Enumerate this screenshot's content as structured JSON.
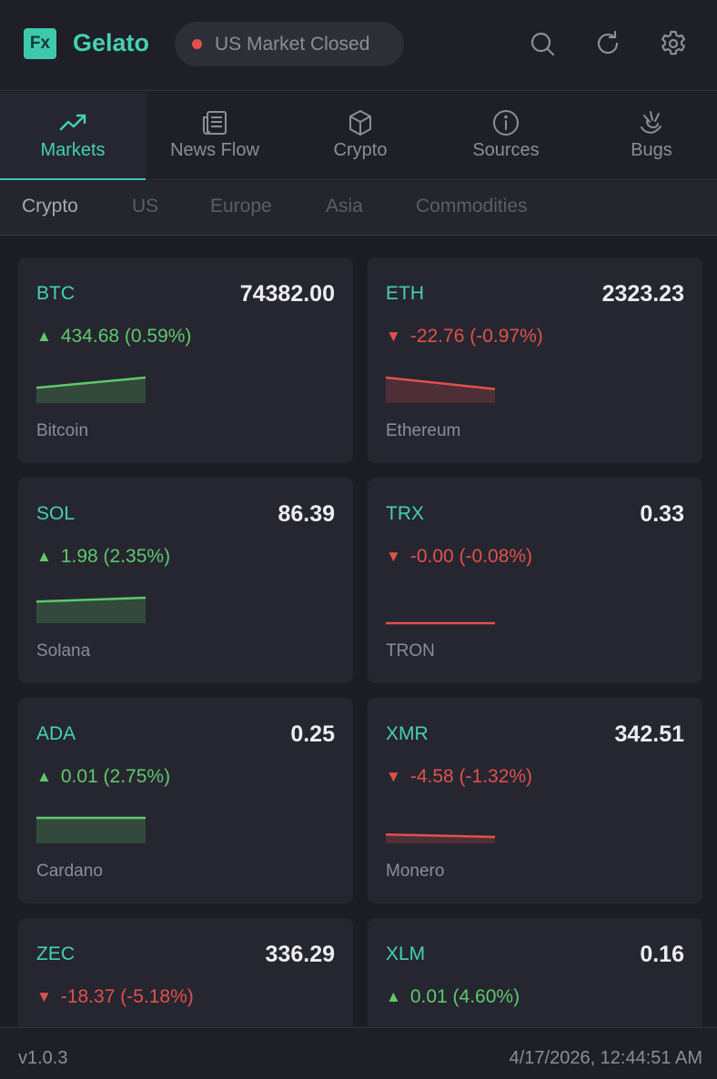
{
  "header": {
    "logo_text": "Fx",
    "app_name": "Gelato",
    "market_status": "US Market Closed",
    "status_color": "#e0514c",
    "icons": [
      "search-icon",
      "refresh-icon",
      "gear-icon"
    ]
  },
  "main_tabs": [
    {
      "label": "Markets",
      "icon": "trending-up-icon",
      "active": true
    },
    {
      "label": "News Flow",
      "icon": "newspaper-icon",
      "active": false
    },
    {
      "label": "Crypto",
      "icon": "cube-icon",
      "active": false
    },
    {
      "label": "Sources",
      "icon": "info-icon",
      "active": false
    },
    {
      "label": "Bugs",
      "icon": "bug-icon",
      "active": false
    }
  ],
  "sub_tabs": [
    {
      "label": "Crypto",
      "active": true
    },
    {
      "label": "US",
      "active": false
    },
    {
      "label": "Europe",
      "active": false
    },
    {
      "label": "Asia",
      "active": false
    },
    {
      "label": "Commodities",
      "active": false
    }
  ],
  "cards": [
    {
      "symbol": "BTC",
      "price": "74382.00",
      "change": "434.68 (0.59%)",
      "direction": "up",
      "name": "Bitcoin",
      "trend": [
        0.6,
        1.0
      ]
    },
    {
      "symbol": "ETH",
      "price": "2323.23",
      "change": "-22.76 (-0.97%)",
      "direction": "down",
      "name": "Ethereum",
      "trend": [
        1.0,
        0.55
      ]
    },
    {
      "symbol": "SOL",
      "price": "86.39",
      "change": "1.98 (2.35%)",
      "direction": "up",
      "name": "Solana",
      "trend": [
        0.85,
        1.0
      ]
    },
    {
      "symbol": "TRX",
      "price": "0.33",
      "change": "-0.00 (-0.08%)",
      "direction": "down",
      "name": "TRON",
      "trend": [
        0.0,
        0.0
      ]
    },
    {
      "symbol": "ADA",
      "price": "0.25",
      "change": "0.01 (2.75%)",
      "direction": "up",
      "name": "Cardano",
      "trend": [
        1.0,
        1.0
      ]
    },
    {
      "symbol": "XMR",
      "price": "342.51",
      "change": "-4.58 (-1.32%)",
      "direction": "down",
      "name": "Monero",
      "trend": [
        0.35,
        0.25
      ]
    },
    {
      "symbol": "ZEC",
      "price": "336.29",
      "change": "-18.37 (-5.18%)",
      "direction": "down",
      "name": "",
      "trend": []
    },
    {
      "symbol": "XLM",
      "price": "0.16",
      "change": "0.01 (4.60%)",
      "direction": "up",
      "name": "",
      "trend": []
    }
  ],
  "colors": {
    "accent": "#43d1b3",
    "up": "#5ec96b",
    "down": "#e0514c"
  },
  "footer": {
    "version": "v1.0.3",
    "timestamp": "4/17/2026, 12:44:51 AM"
  }
}
